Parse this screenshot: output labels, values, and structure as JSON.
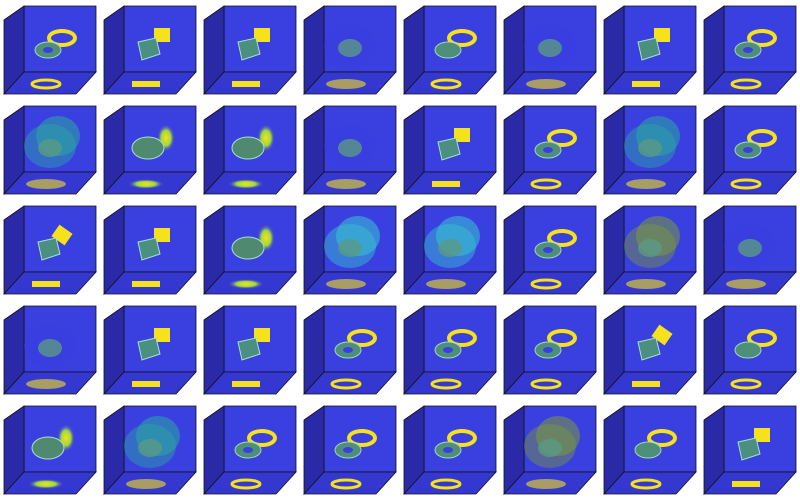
{
  "figure": {
    "rows": 5,
    "cols": 8,
    "colors": {
      "background_blue": "#3a3fe0",
      "deep_blue": "#2a2aa8",
      "teal": "#2aa9a0",
      "cyan": "#37c6d0",
      "yellow": "#f5e21a",
      "outline": "#111111"
    },
    "cells": [
      {
        "kind": "ring",
        "face": "blue"
      },
      {
        "kind": "box",
        "face": "cyan"
      },
      {
        "kind": "square",
        "face": "blue"
      },
      {
        "kind": "cloud",
        "face": "blue"
      },
      {
        "kind": "disc",
        "face": "blue"
      },
      {
        "kind": "cloud",
        "face": "blue"
      },
      {
        "kind": "box",
        "face": "blue"
      },
      {
        "kind": "ring",
        "face": "blue"
      },
      {
        "kind": "cloud",
        "face": "teal"
      },
      {
        "kind": "ellipsoid",
        "face": "blue"
      },
      {
        "kind": "ellipsoid",
        "face": "teal"
      },
      {
        "kind": "cloud",
        "face": "blue"
      },
      {
        "kind": "square",
        "face": "blue"
      },
      {
        "kind": "ring",
        "face": "blue"
      },
      {
        "kind": "cloud",
        "face": "teal"
      },
      {
        "kind": "ring",
        "face": "blue"
      },
      {
        "kind": "diamond",
        "face": "blue"
      },
      {
        "kind": "square",
        "face": "blue"
      },
      {
        "kind": "ellipsoid",
        "face": "blue"
      },
      {
        "kind": "cloud",
        "face": "cyan"
      },
      {
        "kind": "cloud",
        "face": "cyan"
      },
      {
        "kind": "ring",
        "face": "blue"
      },
      {
        "kind": "cloud",
        "face": "olive"
      },
      {
        "kind": "cloud",
        "face": "blue"
      },
      {
        "kind": "cloud",
        "face": "blue"
      },
      {
        "kind": "square",
        "face": "blue"
      },
      {
        "kind": "box",
        "face": "teal"
      },
      {
        "kind": "ring",
        "face": "blue"
      },
      {
        "kind": "ring",
        "face": "blue"
      },
      {
        "kind": "ring",
        "face": "cyan"
      },
      {
        "kind": "diamond",
        "face": "blue"
      },
      {
        "kind": "disc",
        "face": "blue"
      },
      {
        "kind": "ellipsoid",
        "face": "blue"
      },
      {
        "kind": "cloud",
        "face": "teal"
      },
      {
        "kind": "ring",
        "face": "blue"
      },
      {
        "kind": "ring",
        "face": "blue"
      },
      {
        "kind": "ring",
        "face": "blue"
      },
      {
        "kind": "cloud",
        "face": "olive"
      },
      {
        "kind": "disc",
        "face": "blue"
      },
      {
        "kind": "box",
        "face": "blue"
      }
    ]
  }
}
